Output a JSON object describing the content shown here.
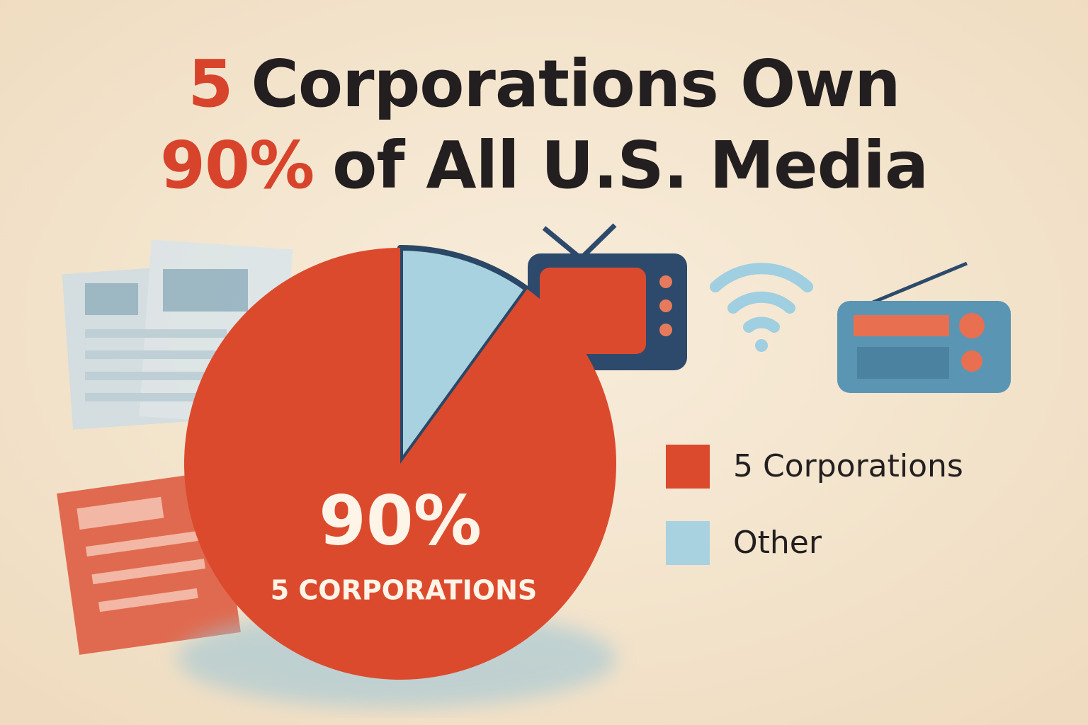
{
  "chart_data": {
    "type": "pie",
    "title": {
      "lines": [
        [
          {
            "text": "5",
            "highlight": true
          },
          {
            "text": "Corporations Own",
            "highlight": false
          }
        ],
        [
          {
            "text": "90%",
            "highlight": true
          },
          {
            "text": "of All U.S. Media",
            "highlight": false
          }
        ]
      ]
    },
    "categories": [
      "5 Corporations",
      "Other"
    ],
    "values": [
      90,
      10
    ],
    "value_labels": [
      "90%",
      null
    ],
    "annotation": "5 CORPORATIONS",
    "series_colors": [
      "#dc4a2d",
      "#a9d2e0"
    ],
    "legend": "right"
  }
}
